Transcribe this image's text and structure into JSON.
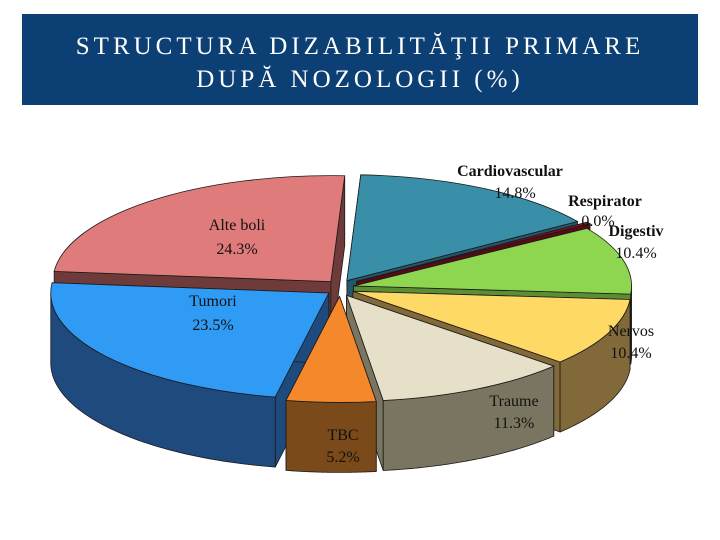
{
  "title": {
    "line1": "STRUCTURA DIZABILITĂŢII PRIMARE",
    "line2": "DUPĂ NOZOLOGII (%)"
  },
  "chart_data": {
    "type": "pie",
    "title": "STRUCTURA DIZABILITĂŢII PRIMARE DUPĂ NOZOLOGII (%)",
    "exploded": true,
    "three_d": true,
    "slices": [
      {
        "name": "Cardiovascular",
        "value_label": "14.8%",
        "value": 14.8,
        "color": "#3a8fa8",
        "dark": "#24576a"
      },
      {
        "name": "Respirator",
        "value_label": "0.0%",
        "value": 0.0,
        "color": "#8a1020",
        "dark": "#5a0a15"
      },
      {
        "name": "Digestiv",
        "value_label": "10.4%",
        "value": 10.4,
        "color": "#8fd650",
        "dark": "#5b8d33"
      },
      {
        "name": "Nervos",
        "value_label": "10.4%",
        "value": 10.4,
        "color": "#ffd966",
        "dark": "#82693a"
      },
      {
        "name": "Traume",
        "value_label": "11.3%",
        "value": 11.3,
        "color": "#e6e0c8",
        "dark": "#7a7560"
      },
      {
        "name": "TBC",
        "value_label": "5.2%",
        "value": 5.2,
        "color": "#f5882a",
        "dark": "#7a4a1a"
      },
      {
        "name": "Tumori",
        "value_label": "23.5%",
        "value": 23.5,
        "color": "#2f9bf5",
        "dark": "#1f4a7e"
      },
      {
        "name": "Alte boli",
        "value_label": "24.3%",
        "value": 24.3,
        "color": "#e07b7b",
        "dark": "#6e3a3a"
      }
    ]
  }
}
